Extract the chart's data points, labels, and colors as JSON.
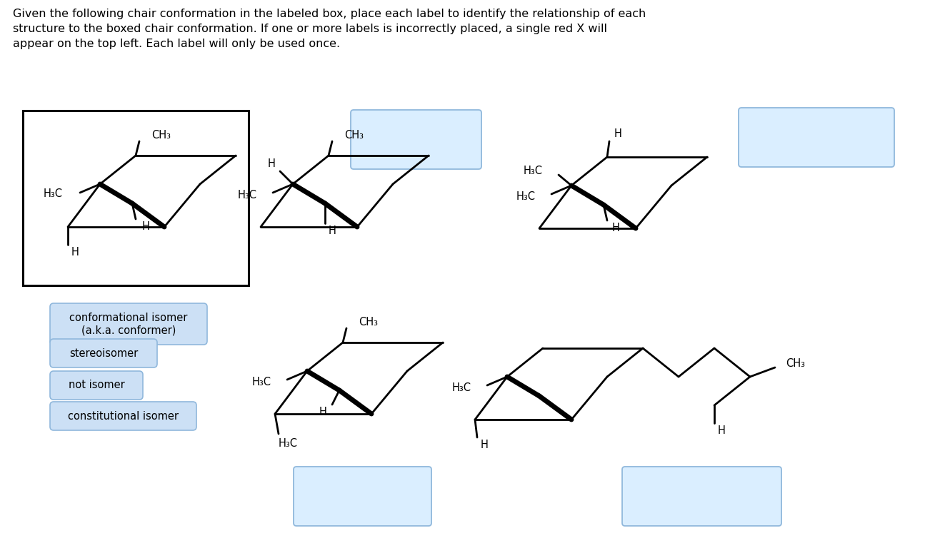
{
  "bg_color": "#ffffff",
  "title": "Given the following chair conformation in the labeled box, place each label to identify the relationship of each\nstructure to the boxed chair conformation. If one or more labels is incorrectly placed, a single red X will\nappear on the top left. Each label will only be used once.",
  "title_fontsize": 11.5,
  "label_bg": "#cce0f5",
  "label_border": "#90b8dc",
  "answer_bg": "#daeeff",
  "answer_border": "#90b8dc",
  "lw": 2.0,
  "blw": 5.0,
  "labels": [
    "conformational isomer\n(a.k.a. conformer)",
    "stereoisomer",
    "not isomer",
    "constitutional isomer"
  ]
}
